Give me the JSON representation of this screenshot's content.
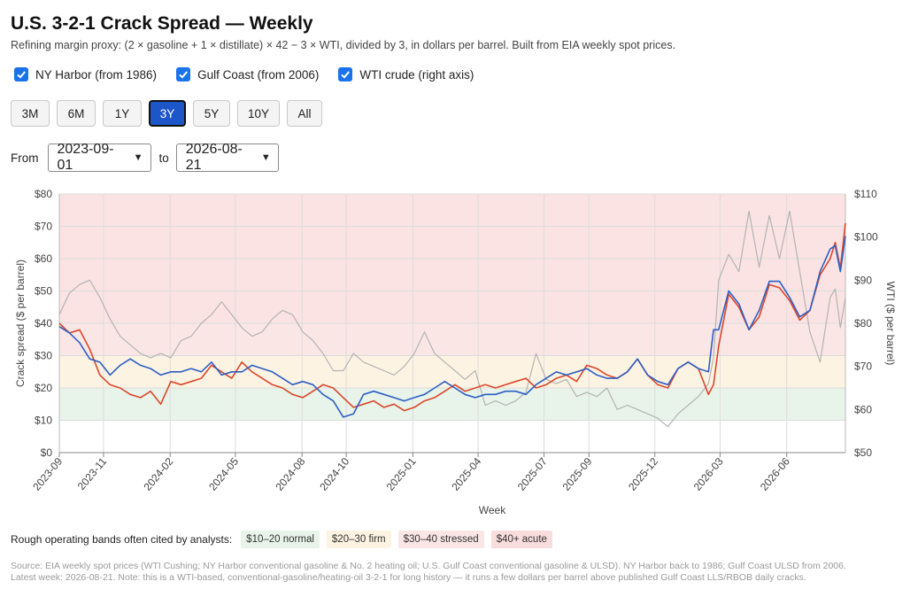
{
  "header": {
    "title": "U.S. 3-2-1 Crack Spread — Weekly",
    "subtitle": "Refining margin proxy: (2 × gasoline + 1 × distillate) × 42 − 3 × WTI, divided by 3, in dollars per barrel. Built from EIA weekly spot prices."
  },
  "toggles": [
    {
      "label": "NY Harbor (from 1986)",
      "checked": true
    },
    {
      "label": "Gulf Coast (from 2006)",
      "checked": true
    },
    {
      "label": "WTI crude (right axis)",
      "checked": true
    }
  ],
  "ranges": {
    "buttons": [
      "3M",
      "6M",
      "1Y",
      "3Y",
      "5Y",
      "10Y",
      "All"
    ],
    "active": "3Y"
  },
  "date_range": {
    "from_label": "From",
    "from_value": "2023-09-01",
    "to_label": "to",
    "to_value": "2026-08-21"
  },
  "bands_legend": {
    "intro": "Rough operating bands often cited by analysts:",
    "items": [
      {
        "label": "$10–20 normal",
        "color": "#e8f3ea"
      },
      {
        "label": "$20–30 firm",
        "color": "#fdf3e3"
      },
      {
        "label": "$30–40 stressed",
        "color": "#fbe6e6"
      },
      {
        "label": "$40+ acute",
        "color": "#f9dcdc"
      }
    ]
  },
  "source": {
    "line1": "Source: EIA weekly spot prices (WTI Cushing; NY Harbor conventional gasoline & No. 2 heating oil; U.S. Gulf Coast conventional gasoline & ULSD). NY Harbor back to 1986; Gulf Coast ULSD from 2006.",
    "line2": "Latest week: 2026-08-21. Note: this is a WTI-based, conventional-gasoline/heating-oil 3-2-1 for long history — it runs a few dollars per barrel above published Gulf Coast LLS/RBOB daily cracks."
  },
  "chart_data": {
    "type": "line",
    "title": "",
    "xlabel": "Week",
    "ylabel": "Crack spread ($ per barrel)",
    "y2label": "WTI ($ per barrel)",
    "ylim": [
      0,
      80
    ],
    "y2lim": [
      50,
      110
    ],
    "yticks": [
      "$0",
      "$10",
      "$20",
      "$30",
      "$40",
      "$50",
      "$60",
      "$70",
      "$80"
    ],
    "y2ticks": [
      "$50",
      "$60",
      "$70",
      "$80",
      "$90",
      "$100",
      "$110"
    ],
    "xlim": [
      "2023-09-01",
      "2026-08-21"
    ],
    "xticks": [
      "2023-09",
      "2023-11",
      "2024-02",
      "2024-05",
      "2024-08",
      "2024-10",
      "2025-01",
      "2025-04",
      "2025-07",
      "2025-09",
      "2025-12",
      "2026-03",
      "2026-06"
    ],
    "grid": true,
    "bands": [
      {
        "from": 10,
        "to": 20,
        "label": "normal",
        "color": "#e8f3ea"
      },
      {
        "from": 20,
        "to": 30,
        "label": "firm",
        "color": "#fdf3e3"
      },
      {
        "from": 30,
        "to": 40,
        "label": "stressed",
        "color": "#fbe6e6"
      },
      {
        "from": 40,
        "to": 80,
        "label": "acute",
        "color": "#fbe3e3"
      }
    ],
    "series": [
      {
        "name": "NY Harbor",
        "axis": "left",
        "color": "#d9482b",
        "points": [
          [
            "2023-09-01",
            40
          ],
          [
            "2023-09-15",
            37
          ],
          [
            "2023-09-29",
            38
          ],
          [
            "2023-10-13",
            32
          ],
          [
            "2023-10-27",
            24
          ],
          [
            "2023-11-10",
            21
          ],
          [
            "2023-11-24",
            20
          ],
          [
            "2023-12-08",
            18
          ],
          [
            "2023-12-22",
            17
          ],
          [
            "2024-01-05",
            19
          ],
          [
            "2024-01-19",
            15
          ],
          [
            "2024-02-02",
            22
          ],
          [
            "2024-02-16",
            21
          ],
          [
            "2024-03-01",
            22
          ],
          [
            "2024-03-15",
            23
          ],
          [
            "2024-03-29",
            27
          ],
          [
            "2024-04-12",
            25
          ],
          [
            "2024-04-26",
            23
          ],
          [
            "2024-05-10",
            28
          ],
          [
            "2024-05-24",
            25
          ],
          [
            "2024-06-07",
            23
          ],
          [
            "2024-06-21",
            21
          ],
          [
            "2024-07-05",
            20
          ],
          [
            "2024-07-19",
            18
          ],
          [
            "2024-08-02",
            17
          ],
          [
            "2024-08-16",
            19
          ],
          [
            "2024-08-30",
            21
          ],
          [
            "2024-09-13",
            20
          ],
          [
            "2024-09-27",
            17
          ],
          [
            "2024-10-11",
            14
          ],
          [
            "2024-10-25",
            15
          ],
          [
            "2024-11-08",
            16
          ],
          [
            "2024-11-22",
            14
          ],
          [
            "2024-12-06",
            15
          ],
          [
            "2024-12-20",
            13
          ],
          [
            "2025-01-03",
            14
          ],
          [
            "2025-01-17",
            16
          ],
          [
            "2025-01-31",
            17
          ],
          [
            "2025-02-14",
            19
          ],
          [
            "2025-02-28",
            21
          ],
          [
            "2025-03-14",
            19
          ],
          [
            "2025-03-28",
            20
          ],
          [
            "2025-04-11",
            21
          ],
          [
            "2025-04-25",
            20
          ],
          [
            "2025-05-09",
            21
          ],
          [
            "2025-05-23",
            22
          ],
          [
            "2025-06-06",
            23
          ],
          [
            "2025-06-20",
            20
          ],
          [
            "2025-07-04",
            21
          ],
          [
            "2025-07-18",
            23
          ],
          [
            "2025-08-01",
            24
          ],
          [
            "2025-08-15",
            22
          ],
          [
            "2025-08-29",
            27
          ],
          [
            "2025-09-12",
            26
          ],
          [
            "2025-09-26",
            24
          ],
          [
            "2025-10-10",
            23
          ],
          [
            "2025-10-24",
            25
          ],
          [
            "2025-11-07",
            29
          ],
          [
            "2025-11-21",
            24
          ],
          [
            "2025-12-05",
            21
          ],
          [
            "2025-12-19",
            20
          ],
          [
            "2026-01-02",
            26
          ],
          [
            "2026-01-16",
            28
          ],
          [
            "2026-01-30",
            26
          ],
          [
            "2026-02-13",
            18
          ],
          [
            "2026-02-20",
            21
          ],
          [
            "2026-02-27",
            33
          ],
          [
            "2026-03-13",
            49
          ],
          [
            "2026-03-27",
            45
          ],
          [
            "2026-04-10",
            38
          ],
          [
            "2026-04-24",
            42
          ],
          [
            "2026-05-08",
            52
          ],
          [
            "2026-05-22",
            51
          ],
          [
            "2026-06-05",
            47
          ],
          [
            "2026-06-19",
            41
          ],
          [
            "2026-07-03",
            44
          ],
          [
            "2026-07-17",
            55
          ],
          [
            "2026-07-31",
            60
          ],
          [
            "2026-08-07",
            65
          ],
          [
            "2026-08-14",
            57
          ],
          [
            "2026-08-21",
            71
          ]
        ]
      },
      {
        "name": "Gulf Coast",
        "axis": "left",
        "color": "#2d5fc4",
        "points": [
          [
            "2023-09-01",
            39
          ],
          [
            "2023-09-15",
            37
          ],
          [
            "2023-09-29",
            34
          ],
          [
            "2023-10-13",
            29
          ],
          [
            "2023-10-27",
            28
          ],
          [
            "2023-11-10",
            24
          ],
          [
            "2023-11-24",
            27
          ],
          [
            "2023-12-08",
            29
          ],
          [
            "2023-12-22",
            27
          ],
          [
            "2024-01-05",
            26
          ],
          [
            "2024-01-19",
            24
          ],
          [
            "2024-02-02",
            25
          ],
          [
            "2024-02-16",
            25
          ],
          [
            "2024-03-01",
            26
          ],
          [
            "2024-03-15",
            25
          ],
          [
            "2024-03-29",
            28
          ],
          [
            "2024-04-12",
            24
          ],
          [
            "2024-04-26",
            25
          ],
          [
            "2024-05-10",
            25
          ],
          [
            "2024-05-24",
            27
          ],
          [
            "2024-06-07",
            26
          ],
          [
            "2024-06-21",
            25
          ],
          [
            "2024-07-05",
            23
          ],
          [
            "2024-07-19",
            21
          ],
          [
            "2024-08-02",
            22
          ],
          [
            "2024-08-16",
            21
          ],
          [
            "2024-08-30",
            18
          ],
          [
            "2024-09-13",
            16
          ],
          [
            "2024-09-27",
            11
          ],
          [
            "2024-10-11",
            12
          ],
          [
            "2024-10-25",
            18
          ],
          [
            "2024-11-08",
            19
          ],
          [
            "2024-11-22",
            18
          ],
          [
            "2024-12-06",
            17
          ],
          [
            "2024-12-20",
            16
          ],
          [
            "2025-01-03",
            17
          ],
          [
            "2025-01-17",
            18
          ],
          [
            "2025-01-31",
            20
          ],
          [
            "2025-02-14",
            22
          ],
          [
            "2025-02-28",
            20
          ],
          [
            "2025-03-14",
            18
          ],
          [
            "2025-03-28",
            17
          ],
          [
            "2025-04-11",
            18
          ],
          [
            "2025-04-25",
            18
          ],
          [
            "2025-05-09",
            19
          ],
          [
            "2025-05-23",
            19
          ],
          [
            "2025-06-06",
            18
          ],
          [
            "2025-06-20",
            21
          ],
          [
            "2025-07-04",
            23
          ],
          [
            "2025-07-18",
            25
          ],
          [
            "2025-08-01",
            24
          ],
          [
            "2025-08-15",
            25
          ],
          [
            "2025-08-29",
            26
          ],
          [
            "2025-09-12",
            24
          ],
          [
            "2025-09-26",
            23
          ],
          [
            "2025-10-10",
            23
          ],
          [
            "2025-10-24",
            25
          ],
          [
            "2025-11-07",
            29
          ],
          [
            "2025-11-21",
            24
          ],
          [
            "2025-12-05",
            22
          ],
          [
            "2025-12-19",
            21
          ],
          [
            "2026-01-02",
            26
          ],
          [
            "2026-01-16",
            28
          ],
          [
            "2026-01-30",
            26
          ],
          [
            "2026-02-13",
            25
          ],
          [
            "2026-02-20",
            38
          ],
          [
            "2026-02-27",
            38
          ],
          [
            "2026-03-13",
            50
          ],
          [
            "2026-03-27",
            46
          ],
          [
            "2026-04-10",
            38
          ],
          [
            "2026-04-24",
            44
          ],
          [
            "2026-05-08",
            53
          ],
          [
            "2026-05-22",
            53
          ],
          [
            "2026-06-05",
            48
          ],
          [
            "2026-06-19",
            42
          ],
          [
            "2026-07-03",
            44
          ],
          [
            "2026-07-17",
            56
          ],
          [
            "2026-07-31",
            63
          ],
          [
            "2026-08-07",
            64
          ],
          [
            "2026-08-14",
            56
          ],
          [
            "2026-08-21",
            67
          ]
        ]
      },
      {
        "name": "WTI crude",
        "axis": "right",
        "color": "#b3b3b3",
        "points": [
          [
            "2023-09-01",
            82
          ],
          [
            "2023-09-15",
            87
          ],
          [
            "2023-09-29",
            89
          ],
          [
            "2023-10-13",
            90
          ],
          [
            "2023-10-27",
            86
          ],
          [
            "2023-11-10",
            81
          ],
          [
            "2023-11-24",
            77
          ],
          [
            "2023-12-08",
            75
          ],
          [
            "2023-12-22",
            73
          ],
          [
            "2024-01-05",
            72
          ],
          [
            "2024-01-19",
            73
          ],
          [
            "2024-02-02",
            72
          ],
          [
            "2024-02-16",
            76
          ],
          [
            "2024-03-01",
            77
          ],
          [
            "2024-03-15",
            80
          ],
          [
            "2024-03-29",
            82
          ],
          [
            "2024-04-12",
            85
          ],
          [
            "2024-04-26",
            82
          ],
          [
            "2024-05-10",
            79
          ],
          [
            "2024-05-24",
            77
          ],
          [
            "2024-06-07",
            78
          ],
          [
            "2024-06-21",
            81
          ],
          [
            "2024-07-05",
            83
          ],
          [
            "2024-07-19",
            82
          ],
          [
            "2024-08-02",
            78
          ],
          [
            "2024-08-16",
            76
          ],
          [
            "2024-08-30",
            73
          ],
          [
            "2024-09-13",
            69
          ],
          [
            "2024-09-27",
            69
          ],
          [
            "2024-10-11",
            73
          ],
          [
            "2024-10-25",
            71
          ],
          [
            "2024-11-08",
            70
          ],
          [
            "2024-11-22",
            69
          ],
          [
            "2024-12-06",
            68
          ],
          [
            "2024-12-20",
            70
          ],
          [
            "2025-01-03",
            73
          ],
          [
            "2025-01-17",
            78
          ],
          [
            "2025-01-31",
            73
          ],
          [
            "2025-02-14",
            71
          ],
          [
            "2025-02-28",
            69
          ],
          [
            "2025-03-14",
            67
          ],
          [
            "2025-03-28",
            69
          ],
          [
            "2025-04-11",
            61
          ],
          [
            "2025-04-25",
            62
          ],
          [
            "2025-05-09",
            61
          ],
          [
            "2025-05-23",
            62
          ],
          [
            "2025-06-06",
            64
          ],
          [
            "2025-06-20",
            73
          ],
          [
            "2025-07-04",
            67
          ],
          [
            "2025-07-18",
            66
          ],
          [
            "2025-08-01",
            67
          ],
          [
            "2025-08-15",
            63
          ],
          [
            "2025-08-29",
            64
          ],
          [
            "2025-09-12",
            63
          ],
          [
            "2025-09-26",
            65
          ],
          [
            "2025-10-10",
            60
          ],
          [
            "2025-10-24",
            61
          ],
          [
            "2025-11-07",
            60
          ],
          [
            "2025-11-21",
            59
          ],
          [
            "2025-12-05",
            58
          ],
          [
            "2025-12-19",
            56
          ],
          [
            "2026-01-02",
            59
          ],
          [
            "2026-01-16",
            61
          ],
          [
            "2026-01-30",
            63
          ],
          [
            "2026-02-13",
            66
          ],
          [
            "2026-02-20",
            72
          ],
          [
            "2026-02-27",
            90
          ],
          [
            "2026-03-13",
            96
          ],
          [
            "2026-03-27",
            92
          ],
          [
            "2026-04-10",
            106
          ],
          [
            "2026-04-24",
            93
          ],
          [
            "2026-05-08",
            105
          ],
          [
            "2026-05-22",
            95
          ],
          [
            "2026-06-05",
            106
          ],
          [
            "2026-06-19",
            92
          ],
          [
            "2026-07-03",
            78
          ],
          [
            "2026-07-17",
            71
          ],
          [
            "2026-07-31",
            86
          ],
          [
            "2026-08-07",
            88
          ],
          [
            "2026-08-14",
            79
          ],
          [
            "2026-08-21",
            86
          ]
        ]
      }
    ]
  }
}
